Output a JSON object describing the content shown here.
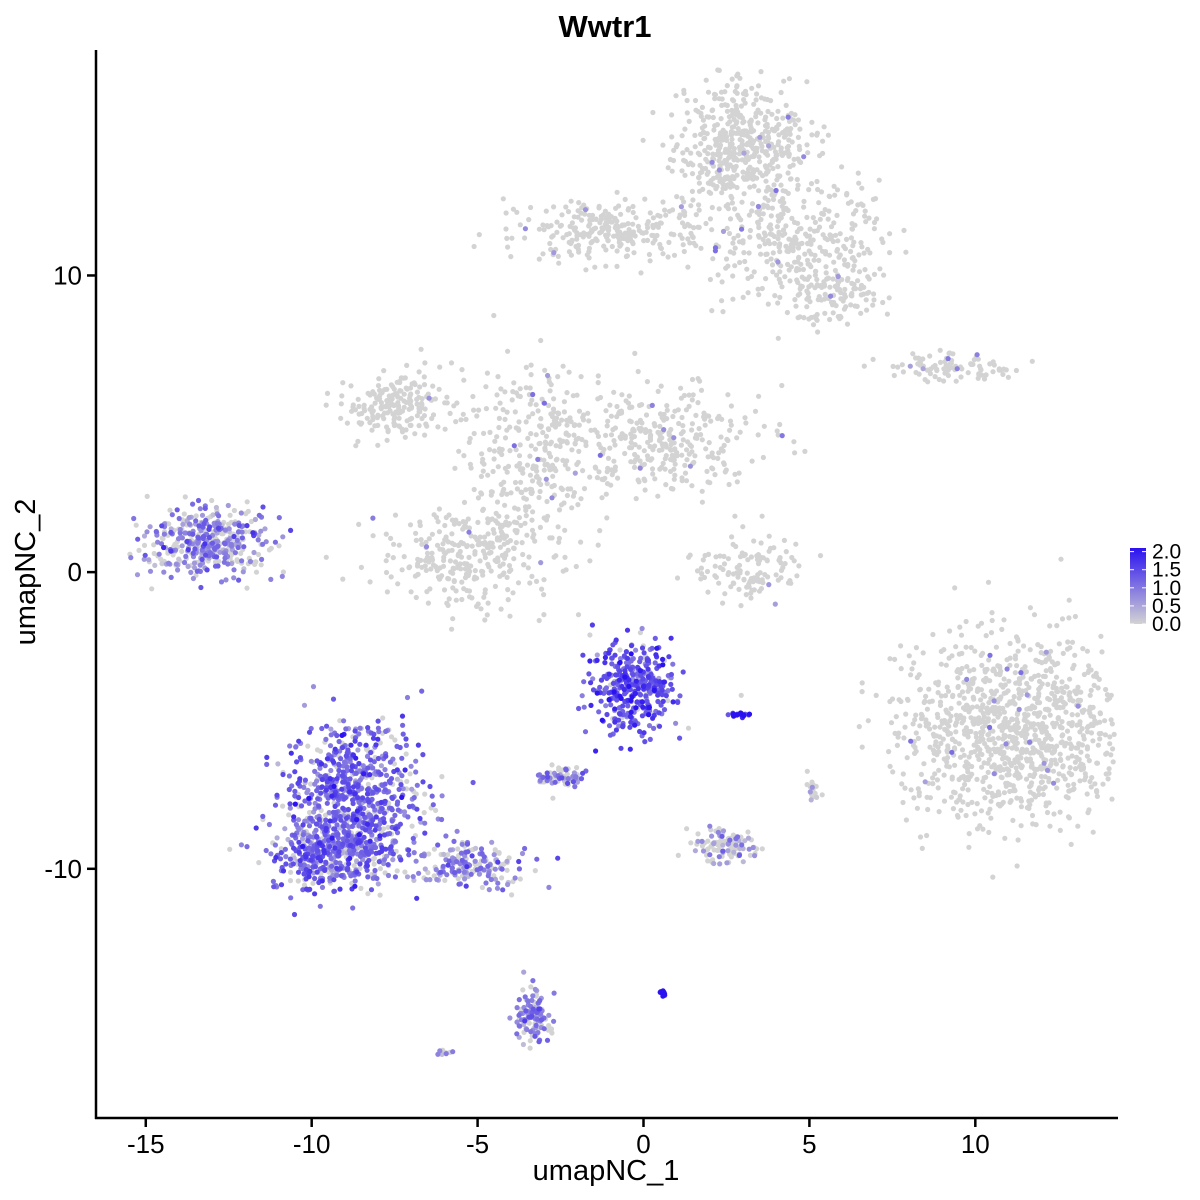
{
  "chart_data": {
    "type": "scatter",
    "title": "Wwtr1",
    "xlabel": "umapNC_1",
    "ylabel": "umapNC_2",
    "xlim": [
      -16.5,
      14.3
    ],
    "ylim": [
      -18.4,
      17.6
    ],
    "x_ticks": [
      -15,
      -10,
      -5,
      0,
      5,
      10
    ],
    "x_tick_labels": [
      "-15",
      "-10",
      "-5",
      "0",
      "5",
      "10"
    ],
    "y_ticks": [
      -10,
      0,
      10
    ],
    "y_tick_labels": [
      "-10",
      "0",
      "10"
    ],
    "grid": false,
    "legend_position": "right",
    "color_scale": {
      "low": "#d3d3d3",
      "high": "#2b12f0",
      "min": 0,
      "max": 2.1,
      "ticks": [
        0.0,
        0.5,
        1.0,
        1.5,
        2.0
      ],
      "tick_labels": [
        "0.0",
        "0.5",
        "1.0",
        "1.5",
        "2.0"
      ]
    },
    "clusters": [
      {
        "id": "top-upper-head",
        "cx": 2.9,
        "cy": 14.3,
        "sx": 1.0,
        "sy": 1.1,
        "n": 500,
        "expr": 0.01
      },
      {
        "id": "top-upper-arm-left",
        "cx": -1.0,
        "cy": 11.5,
        "sx": 1.4,
        "sy": 0.5,
        "n": 260,
        "expr": 0.01
      },
      {
        "id": "top-upper-arm-right",
        "cx": 4.5,
        "cy": 11.2,
        "sx": 1.3,
        "sy": 1.0,
        "n": 320,
        "expr": 0.02
      },
      {
        "id": "top-upper-lobe-right",
        "cx": 5.7,
        "cy": 9.5,
        "sx": 0.6,
        "sy": 0.6,
        "n": 120,
        "expr": 0.02
      },
      {
        "id": "mid-blob-left-top",
        "cx": -7.4,
        "cy": 5.6,
        "sx": 0.8,
        "sy": 0.5,
        "n": 200,
        "expr": 0.01
      },
      {
        "id": "mid-blob-center",
        "cx": -3.5,
        "cy": 4.2,
        "sx": 1.0,
        "sy": 1.4,
        "n": 260,
        "expr": 0.01
      },
      {
        "id": "mid-blob-right",
        "cx": 0.4,
        "cy": 4.4,
        "sx": 1.6,
        "sy": 0.9,
        "n": 340,
        "expr": 0.02
      },
      {
        "id": "mid-blob-lower",
        "cx": -5.2,
        "cy": 0.6,
        "sx": 1.4,
        "sy": 0.9,
        "n": 320,
        "expr": 0.02
      },
      {
        "id": "small-mid-right",
        "cx": 3.2,
        "cy": 0.2,
        "sx": 0.8,
        "sy": 0.6,
        "n": 120,
        "expr": 0.02
      },
      {
        "id": "far-right-strip",
        "cx": 9.3,
        "cy": 6.9,
        "sx": 0.9,
        "sy": 0.25,
        "n": 90,
        "expr": 0.02
      },
      {
        "id": "big-right-blob",
        "cx": 11.1,
        "cy": -5.3,
        "sx": 1.7,
        "sy": 1.5,
        "n": 1100,
        "expr": 0.02
      },
      {
        "id": "left-small-purple",
        "cx": -13.2,
        "cy": 1.0,
        "sx": 0.85,
        "sy": 0.55,
        "n": 420,
        "expr": 0.55
      },
      {
        "id": "big-purple-upper",
        "cx": -8.7,
        "cy": -7.5,
        "sx": 1.0,
        "sy": 1.2,
        "n": 700,
        "expr": 0.75
      },
      {
        "id": "big-purple-lower",
        "cx": -9.4,
        "cy": -9.5,
        "sx": 1.0,
        "sy": 0.6,
        "n": 420,
        "expr": 0.7
      },
      {
        "id": "big-purple-tail",
        "cx": -5.3,
        "cy": -9.9,
        "sx": 0.9,
        "sy": 0.35,
        "n": 180,
        "expr": 0.55
      },
      {
        "id": "center-purple-blob",
        "cx": -0.3,
        "cy": -3.9,
        "sx": 0.6,
        "sy": 0.75,
        "n": 400,
        "expr": 0.85
      },
      {
        "id": "small-left-center",
        "cx": -2.5,
        "cy": -6.9,
        "sx": 0.4,
        "sy": 0.15,
        "n": 70,
        "expr": 0.5
      },
      {
        "id": "bottom-tail-blob",
        "cx": -3.3,
        "cy": -15.0,
        "sx": 0.25,
        "sy": 0.5,
        "n": 110,
        "expr": 0.6
      },
      {
        "id": "small-right-purple",
        "cx": 2.4,
        "cy": -9.2,
        "sx": 0.45,
        "sy": 0.3,
        "n": 110,
        "expr": 0.35
      },
      {
        "id": "tiny-bottom-center",
        "cx": 0.6,
        "cy": -14.2,
        "sx": 0.04,
        "sy": 0.05,
        "n": 12,
        "expr": 1.6
      },
      {
        "id": "tiny-right-dash",
        "cx": 2.9,
        "cy": -4.8,
        "sx": 0.2,
        "sy": 0.04,
        "n": 18,
        "expr": 1.2
      },
      {
        "id": "tiny-lower-right",
        "cx": 5.1,
        "cy": -7.4,
        "sx": 0.1,
        "sy": 0.25,
        "n": 20,
        "expr": 0.3
      },
      {
        "id": "tiny-bottom-left",
        "cx": -6.0,
        "cy": -16.2,
        "sx": 0.1,
        "sy": 0.05,
        "n": 10,
        "expr": 0.4
      }
    ]
  }
}
